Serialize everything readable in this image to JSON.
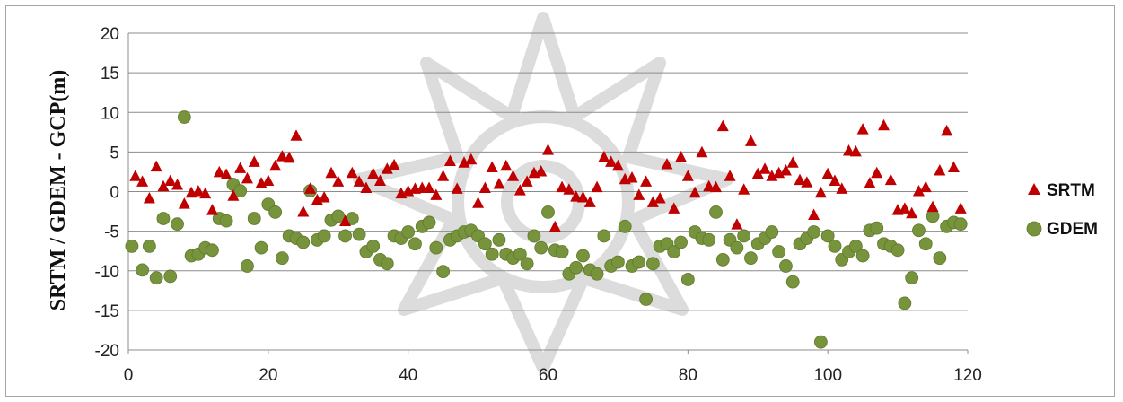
{
  "chart_data": {
    "type": "scatter",
    "title": "",
    "xlabel": "",
    "ylabel": "SRTM / GDEM - GCP(m)",
    "xlim": [
      0,
      120
    ],
    "ylim": [
      -20,
      20
    ],
    "x_ticks": [
      "0",
      "20",
      "40",
      "60",
      "80",
      "100",
      "120"
    ],
    "y_ticks": [
      "20",
      "15",
      "10",
      "5",
      "0",
      "-5",
      "-10",
      "-15",
      "-20"
    ],
    "grid": "horizontal",
    "legend_position": "right",
    "series": [
      {
        "name": "SRTM",
        "marker": "triangle",
        "color": "#c00000",
        "points": [
          [
            1,
            1.9
          ],
          [
            2,
            1.2
          ],
          [
            3,
            -0.9
          ],
          [
            4,
            3.1
          ],
          [
            5,
            0.6
          ],
          [
            6,
            1.3
          ],
          [
            7,
            0.8
          ],
          [
            8,
            -1.6
          ],
          [
            9,
            -0.2
          ],
          [
            10,
            0
          ],
          [
            11,
            -0.3
          ],
          [
            12,
            -2.4
          ],
          [
            13,
            2.4
          ],
          [
            14,
            2.1
          ],
          [
            15,
            -0.6
          ],
          [
            16,
            2.9
          ],
          [
            17,
            1.6
          ],
          [
            18,
            3.7
          ],
          [
            19,
            1
          ],
          [
            20,
            1.3
          ],
          [
            21,
            3.2
          ],
          [
            22,
            4.4
          ],
          [
            23,
            4.2
          ],
          [
            24,
            7
          ],
          [
            25,
            -2.6
          ],
          [
            26,
            0.3
          ],
          [
            27,
            -1.1
          ],
          [
            28,
            -0.8
          ],
          [
            29,
            2.3
          ],
          [
            30,
            1.2
          ],
          [
            31,
            -3.8
          ],
          [
            32,
            2.3
          ],
          [
            33,
            1.2
          ],
          [
            34,
            0.4
          ],
          [
            35,
            2.2
          ],
          [
            36,
            1.3
          ],
          [
            37,
            2.8
          ],
          [
            38,
            3.3
          ],
          [
            39,
            -0.3
          ],
          [
            40,
            0
          ],
          [
            41,
            0.3
          ],
          [
            42,
            0.4
          ],
          [
            43,
            0.4
          ],
          [
            44,
            -0.5
          ],
          [
            45,
            1.9
          ],
          [
            46,
            3.8
          ],
          [
            47,
            0.3
          ],
          [
            48,
            3.6
          ],
          [
            49,
            4
          ],
          [
            50,
            -1.5
          ],
          [
            51,
            0.4
          ],
          [
            52,
            3
          ],
          [
            53,
            0.9
          ],
          [
            54,
            3.2
          ],
          [
            55,
            1.9
          ],
          [
            56,
            0.1
          ],
          [
            57,
            1.2
          ],
          [
            58,
            2.3
          ],
          [
            59,
            2.5
          ],
          [
            60,
            5.2
          ],
          [
            61,
            -4.5
          ],
          [
            62,
            0.5
          ],
          [
            63,
            0.2
          ],
          [
            64,
            -0.7
          ],
          [
            65,
            -0.8
          ],
          [
            66,
            -1.4
          ],
          [
            67,
            0.5
          ],
          [
            68,
            4.3
          ],
          [
            69,
            3.7
          ],
          [
            70,
            3.2
          ],
          [
            71,
            1.5
          ],
          [
            72,
            1.7
          ],
          [
            73,
            -0.5
          ],
          [
            74,
            1.2
          ],
          [
            75,
            -1.4
          ],
          [
            76,
            -0.9
          ],
          [
            77,
            3.4
          ],
          [
            78,
            -2.2
          ],
          [
            79,
            4.3
          ],
          [
            80,
            1.9
          ],
          [
            81,
            -0.2
          ],
          [
            82,
            4.9
          ],
          [
            83,
            0.6
          ],
          [
            84,
            0.5
          ],
          [
            85,
            8.2
          ],
          [
            86,
            1.9
          ],
          [
            87,
            -4.2
          ],
          [
            88,
            0.2
          ],
          [
            89,
            6.3
          ],
          [
            90,
            2.2
          ],
          [
            91,
            2.8
          ],
          [
            92,
            1.9
          ],
          [
            93,
            2.3
          ],
          [
            94,
            2.6
          ],
          [
            95,
            3.6
          ],
          [
            96,
            1.4
          ],
          [
            97,
            1.1
          ],
          [
            98,
            -3
          ],
          [
            99,
            -0.2
          ],
          [
            100,
            2.2
          ],
          [
            101,
            1.3
          ],
          [
            102,
            0.3
          ],
          [
            103,
            5.1
          ],
          [
            104,
            5
          ],
          [
            105,
            7.8
          ],
          [
            106,
            1
          ],
          [
            107,
            2.3
          ],
          [
            108,
            8.3
          ],
          [
            109,
            1.4
          ],
          [
            110,
            -2.4
          ],
          [
            111,
            -2.2
          ],
          [
            112,
            -2.8
          ],
          [
            113,
            0
          ],
          [
            114,
            0.5
          ],
          [
            115,
            -2
          ],
          [
            116,
            2.6
          ],
          [
            117,
            7.6
          ],
          [
            118,
            3
          ],
          [
            119,
            -2.2
          ]
        ]
      },
      {
        "name": "GDEM",
        "marker": "circle",
        "color": "#77933c",
        "points": [
          [
            0.5,
            -6.9
          ],
          [
            2,
            -9.9
          ],
          [
            3,
            -6.9
          ],
          [
            4,
            -10.9
          ],
          [
            5,
            -3.4
          ],
          [
            6,
            -10.7
          ],
          [
            7,
            -4.1
          ],
          [
            8,
            9.4
          ],
          [
            9,
            -8.1
          ],
          [
            10,
            -7.9
          ],
          [
            11,
            -7.1
          ],
          [
            12,
            -7.4
          ],
          [
            13,
            -3.4
          ],
          [
            14,
            -3.7
          ],
          [
            15,
            0.9
          ],
          [
            16,
            0.1
          ],
          [
            17,
            -9.4
          ],
          [
            18,
            -3.4
          ],
          [
            19,
            -7.1
          ],
          [
            20,
            -1.6
          ],
          [
            21,
            -2.6
          ],
          [
            22,
            -8.4
          ],
          [
            23,
            -5.6
          ],
          [
            24,
            -5.9
          ],
          [
            25,
            -6.4
          ],
          [
            26,
            0.1
          ],
          [
            27,
            -6.1
          ],
          [
            28,
            -5.6
          ],
          [
            29,
            -3.6
          ],
          [
            30,
            -3.1
          ],
          [
            31,
            -5.6
          ],
          [
            32,
            -3.4
          ],
          [
            33,
            -5.4
          ],
          [
            34,
            -7.6
          ],
          [
            35,
            -6.9
          ],
          [
            36,
            -8.6
          ],
          [
            37,
            -9.1
          ],
          [
            38,
            -5.6
          ],
          [
            39,
            -5.9
          ],
          [
            40,
            -5.1
          ],
          [
            41,
            -6.6
          ],
          [
            42,
            -4.4
          ],
          [
            43,
            -3.9
          ],
          [
            44,
            -7.1
          ],
          [
            45,
            -10.1
          ],
          [
            46,
            -6.1
          ],
          [
            47,
            -5.6
          ],
          [
            48,
            -5.1
          ],
          [
            49,
            -4.9
          ],
          [
            50,
            -5.6
          ],
          [
            51,
            -6.6
          ],
          [
            52,
            -7.9
          ],
          [
            53,
            -6.1
          ],
          [
            54,
            -7.9
          ],
          [
            55,
            -8.4
          ],
          [
            56,
            -7.9
          ],
          [
            57,
            -9.1
          ],
          [
            58,
            -5.6
          ],
          [
            59,
            -7.1
          ],
          [
            60,
            -2.6
          ],
          [
            61,
            -7.4
          ],
          [
            62,
            -7.6
          ],
          [
            63,
            -10.4
          ],
          [
            64,
            -9.6
          ],
          [
            65,
            -8.1
          ],
          [
            66,
            -9.9
          ],
          [
            67,
            -10.4
          ],
          [
            68,
            -5.6
          ],
          [
            69,
            -9.4
          ],
          [
            70,
            -8.9
          ],
          [
            71,
            -4.4
          ],
          [
            72,
            -9.4
          ],
          [
            73,
            -8.9
          ],
          [
            74,
            -13.6
          ],
          [
            75,
            -9.1
          ],
          [
            76,
            -6.9
          ],
          [
            77,
            -6.6
          ],
          [
            78,
            -7.6
          ],
          [
            79,
            -6.4
          ],
          [
            80,
            -11.1
          ],
          [
            81,
            -5.1
          ],
          [
            82,
            -5.9
          ],
          [
            83,
            -6.1
          ],
          [
            84,
            -2.6
          ],
          [
            85,
            -8.6
          ],
          [
            86,
            -6.1
          ],
          [
            87,
            -7.1
          ],
          [
            88,
            -5.6
          ],
          [
            89,
            -8.4
          ],
          [
            90,
            -6.6
          ],
          [
            91,
            -5.9
          ],
          [
            92,
            -5.1
          ],
          [
            93,
            -7.6
          ],
          [
            94,
            -9.4
          ],
          [
            95,
            -11.4
          ],
          [
            96,
            -6.6
          ],
          [
            97,
            -5.9
          ],
          [
            98,
            -5.1
          ],
          [
            99,
            -19
          ],
          [
            100,
            -5.6
          ],
          [
            101,
            -6.9
          ],
          [
            102,
            -8.6
          ],
          [
            103,
            -7.6
          ],
          [
            104,
            -6.9
          ],
          [
            105,
            -8.1
          ],
          [
            106,
            -4.9
          ],
          [
            107,
            -4.6
          ],
          [
            108,
            -6.6
          ],
          [
            109,
            -6.9
          ],
          [
            110,
            -7.4
          ],
          [
            111,
            -14.1
          ],
          [
            112,
            -10.9
          ],
          [
            113,
            -4.9
          ],
          [
            114,
            -6.6
          ],
          [
            115,
            -3.1
          ],
          [
            116,
            -8.4
          ],
          [
            117,
            -4.4
          ],
          [
            118,
            -3.9
          ],
          [
            119,
            -4.1
          ]
        ]
      }
    ]
  }
}
